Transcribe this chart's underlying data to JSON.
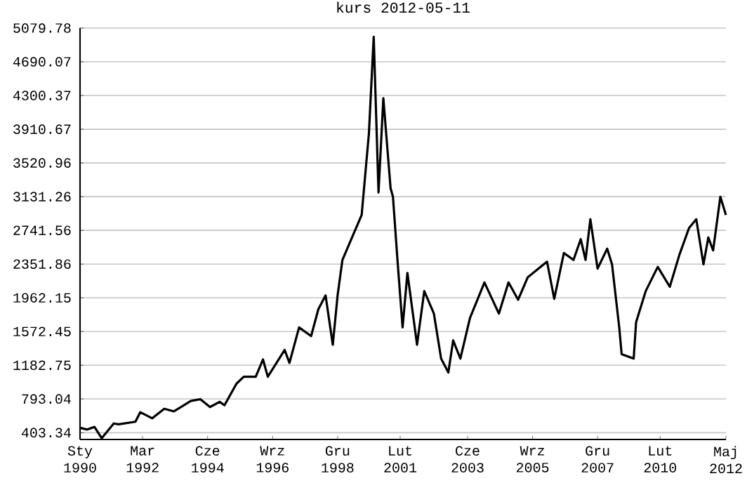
{
  "chart_data": {
    "type": "line",
    "title": "kurs  2012-05-11",
    "x": [
      "1990-01",
      "1990-04",
      "1990-07",
      "1990-10",
      "1991-03",
      "1991-05",
      "1991-12",
      "1992-02",
      "1992-07",
      "1992-12",
      "1993-04",
      "1993-11",
      "1994-03",
      "1994-07",
      "1994-11",
      "1995-01",
      "1995-06",
      "1995-09",
      "1996-02",
      "1996-05",
      "1996-07",
      "1997-02",
      "1997-04",
      "1997-08",
      "1998-01",
      "1998-04",
      "1998-07",
      "1998-10",
      "1998-12",
      "1999-02",
      "1999-06",
      "1999-10",
      "2000-01",
      "2000-03",
      "2000-05",
      "2000-07",
      "2000-10",
      "2000-11",
      "2001-01",
      "2001-03",
      "2001-05",
      "2001-09",
      "2001-12",
      "2002-04",
      "2002-07",
      "2002-10",
      "2002-12",
      "2003-03",
      "2003-07",
      "2004-01",
      "2004-07",
      "2004-11",
      "2005-03",
      "2005-07",
      "2006-03",
      "2006-06",
      "2006-10",
      "2007-02",
      "2007-05",
      "2007-07",
      "2007-09",
      "2007-12",
      "2008-04",
      "2008-06",
      "2008-09",
      "2008-10",
      "2009-03",
      "2009-04",
      "2009-08",
      "2010-01",
      "2010-06",
      "2010-10",
      "2011-02",
      "2011-05",
      "2011-08",
      "2011-10",
      "2011-12",
      "2012-03",
      "2012-05-11"
    ],
    "series": [
      {
        "color": "#000000",
        "values": [
          460,
          440,
          470,
          340,
          510,
          500,
          530,
          640,
          570,
          680,
          650,
          770,
          790,
          700,
          760,
          720,
          970,
          1050,
          1050,
          1250,
          1050,
          1360,
          1210,
          1620,
          1520,
          1830,
          1990,
          1420,
          1990,
          2400,
          2660,
          2920,
          3860,
          4980,
          3180,
          4270,
          3230,
          3130,
          2350,
          1620,
          2250,
          1420,
          2040,
          1780,
          1260,
          1100,
          1470,
          1260,
          1730,
          2140,
          1780,
          2140,
          1940,
          2200,
          2380,
          1950,
          2480,
          2400,
          2640,
          2400,
          2870,
          2300,
          2530,
          2350,
          1620,
          1310,
          1260,
          1680,
          2040,
          2320,
          2090,
          2460,
          2770,
          2870,
          2350,
          2660,
          2510,
          3130,
          2920
        ]
      }
    ],
    "xlim": [
      "1990-01-01",
      "2012-05-11"
    ],
    "ylim": [
      325,
      5079.78
    ],
    "xticks": [
      {
        "value": "1990-01",
        "label": "Sty 1990"
      },
      {
        "value": "1992-03",
        "label": "Mar 1992"
      },
      {
        "value": "1994-06",
        "label": "Cze 1994"
      },
      {
        "value": "1996-09",
        "label": "Wrz 1996"
      },
      {
        "value": "1998-12",
        "label": "Gru 1998"
      },
      {
        "value": "2001-02",
        "label": "Lut 2001"
      },
      {
        "value": "2003-06",
        "label": "Cze 2003"
      },
      {
        "value": "2005-09",
        "label": "Wrz 2005"
      },
      {
        "value": "2007-12",
        "label": "Gru 2007"
      },
      {
        "value": "2010-02",
        "label": "Lut 2010"
      },
      {
        "value": "2012-05-11",
        "label": "Maj 2012"
      }
    ],
    "yticks": [
      403.34,
      793.04,
      1182.75,
      1572.45,
      1962.15,
      2351.86,
      2741.56,
      3131.26,
      3520.96,
      3910.67,
      4300.37,
      4690.07,
      5079.78
    ],
    "grid": "y"
  }
}
